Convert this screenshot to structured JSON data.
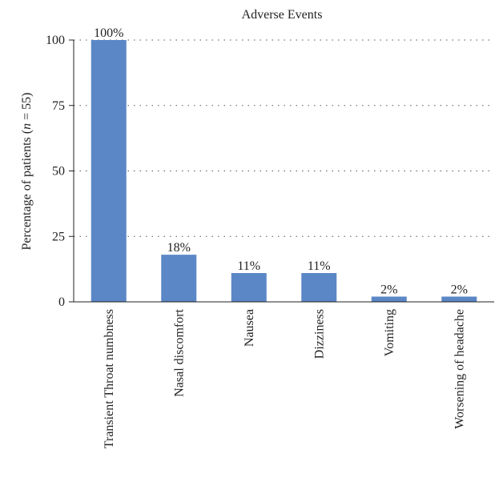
{
  "chart_data": {
    "type": "bar",
    "title": "Adverse Events",
    "ylabel": "Percentage of patients (n = 55)",
    "ylabel_parts": [
      "Percentage of patients (",
      "n",
      " = 55)"
    ],
    "xlabel": "",
    "ylim": [
      0,
      100
    ],
    "yticks": [
      0,
      25,
      50,
      75,
      100
    ],
    "grid": true,
    "categories": [
      "Transient Throat numbness",
      "Nasal discomfort",
      "Nausea",
      "Dizziness",
      "Vomiting",
      "Worsening of headache"
    ],
    "values": [
      100,
      18,
      11,
      11,
      2,
      2
    ],
    "data_labels": [
      "100%",
      "18%",
      "11%",
      "11%",
      "2%",
      "2%"
    ],
    "bar_color": "#5b87c7"
  }
}
